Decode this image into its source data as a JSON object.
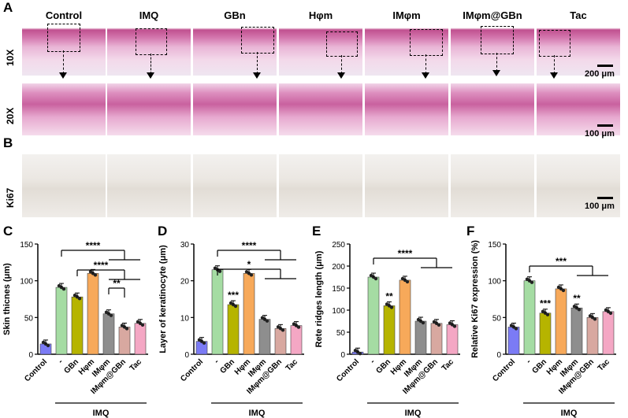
{
  "panels": {
    "A": "A",
    "B": "B",
    "C": "C",
    "D": "D",
    "E": "E",
    "F": "F"
  },
  "columns": [
    "Control",
    "IMQ",
    "GBn",
    "Hφm",
    "IMφm",
    "IMφm@GBn",
    "Tac"
  ],
  "rows": {
    "r10x": "10X",
    "r20x": "20X",
    "ki67": "Ki67"
  },
  "scales": {
    "s200": "200 μm",
    "s100a": "100 μm",
    "s100b": "100 μm"
  },
  "chart_data": [
    {
      "type": "bar",
      "ylabel": "Skin thicnes (μm)",
      "ylim": [
        0,
        150
      ],
      "yticks": [
        0,
        50,
        100,
        150
      ],
      "categories": [
        "Control",
        "-",
        "GBn",
        "Hφm",
        "IMφm",
        "IMφm@GBn",
        "Tac"
      ],
      "values": [
        14,
        91,
        78,
        110,
        55,
        37,
        42
      ],
      "colors": [
        "#7b7bf5",
        "#a5dca3",
        "#b6b400",
        "#f7a95a",
        "#8e8e8e",
        "#d8a8a0",
        "#f4a7c4"
      ],
      "group_label": "IMQ",
      "stars": [
        {
          "text": "****"
        },
        {
          "text": "****"
        },
        {
          "text": "**"
        }
      ]
    },
    {
      "type": "bar",
      "ylabel": "Layer of keratinocyte (μm)",
      "ylim": [
        0,
        30
      ],
      "yticks": [
        0,
        10,
        20,
        30
      ],
      "categories": [
        "Control",
        "-",
        "GBn",
        "Hφm",
        "IMφm",
        "IMφm@GBn",
        "Tac"
      ],
      "values": [
        3.5,
        23,
        13.5,
        22,
        9.5,
        7,
        7.8
      ],
      "colors": [
        "#7b7bf5",
        "#a5dca3",
        "#b6b400",
        "#f7a95a",
        "#8e8e8e",
        "#d8a8a0",
        "#f4a7c4"
      ],
      "group_label": "IMQ",
      "stars": [
        {
          "text": "****"
        },
        {
          "text": "*"
        },
        {
          "text": "***"
        }
      ]
    },
    {
      "type": "bar",
      "ylabel": "Rete ridges  length (μm)",
      "ylim": [
        0,
        250
      ],
      "yticks": [
        0,
        50,
        100,
        150,
        200,
        250
      ],
      "categories": [
        "Control",
        "-",
        "GBn",
        "Hφm",
        "IMφm",
        "IMφm@GBn",
        "Tac"
      ],
      "values": [
        5,
        175,
        110,
        168,
        75,
        70,
        67
      ],
      "colors": [
        "#7b7bf5",
        "#a5dca3",
        "#b6b400",
        "#f7a95a",
        "#8e8e8e",
        "#d8a8a0",
        "#f4a7c4"
      ],
      "group_label": "IMQ",
      "stars": [
        {
          "text": "****"
        },
        {
          "text": "**"
        }
      ]
    },
    {
      "type": "bar",
      "ylabel": "Relative Ki67 expression (%)",
      "ylim": [
        0,
        150
      ],
      "yticks": [
        0,
        50,
        100,
        150
      ],
      "categories": [
        "Control",
        "-",
        "GBn",
        "Hφm",
        "IMφm",
        "IMφm@GBn",
        "Tac"
      ],
      "values": [
        37,
        100,
        56,
        89,
        63,
        50,
        58
      ],
      "colors": [
        "#7b7bf5",
        "#a5dca3",
        "#b6b400",
        "#f7a95a",
        "#8e8e8e",
        "#d8a8a0",
        "#f4a7c4"
      ],
      "group_label": "IMQ",
      "stars": [
        {
          "text": "***"
        },
        {
          "text": "***"
        },
        {
          "text": "**"
        }
      ]
    }
  ]
}
